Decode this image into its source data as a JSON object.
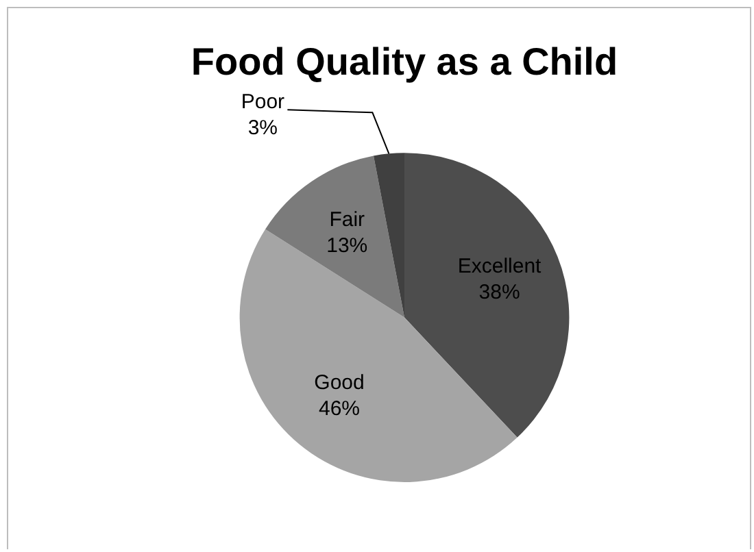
{
  "chart_data": {
    "type": "pie",
    "title": "Food Quality as a Child",
    "categories": [
      "Excellent",
      "Good",
      "Fair",
      "Poor"
    ],
    "values": [
      38,
      46,
      13,
      3
    ],
    "value_labels": [
      "38%",
      "46%",
      "13%",
      "3%"
    ],
    "colors": [
      "#4d4d4d",
      "#a5a5a5",
      "#7b7b7b",
      "#404040"
    ],
    "legend": false
  }
}
